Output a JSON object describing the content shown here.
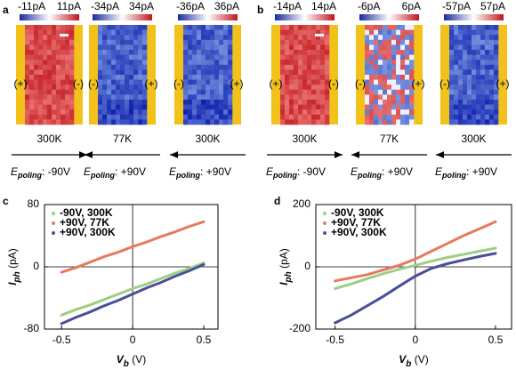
{
  "panels": [
    {
      "label": "a",
      "field_symbol": "E",
      "field_subscript": "poling",
      "images": [
        {
          "cbar_min": "-11pA",
          "cbar_max": "11pA",
          "left_sign": "(+)",
          "right_sign": "(-)",
          "temperature": "300K",
          "arrow": "right",
          "field_value": ": -90V"
        },
        {
          "cbar_min": "-34pA",
          "cbar_max": "34pA",
          "left_sign": "(-)",
          "right_sign": "(+)",
          "temperature": "77K",
          "arrow": "left",
          "field_value": ": +90V"
        },
        {
          "cbar_min": "-36pA",
          "cbar_max": "36pA",
          "left_sign": "(-)",
          "right_sign": "(+)",
          "temperature": "300K",
          "arrow": "left",
          "field_value": ": +90V"
        }
      ]
    },
    {
      "label": "b",
      "field_symbol": "E",
      "field_subscript": "poling",
      "images": [
        {
          "cbar_min": "-14pA",
          "cbar_max": "14pA",
          "left_sign": "(+)",
          "right_sign": "(-)",
          "temperature": "300K",
          "arrow": "right",
          "field_value": ": -90V"
        },
        {
          "cbar_min": "-6pA",
          "cbar_max": "6pA",
          "left_sign": "(-)",
          "right_sign": "(+)",
          "temperature": "77K",
          "arrow": "left",
          "field_value": ": +90V"
        },
        {
          "cbar_min": "-57pA",
          "cbar_max": "57pA",
          "left_sign": "(-)",
          "right_sign": "(+)",
          "temperature": "300K",
          "arrow": "left",
          "field_value": ": +90V"
        }
      ]
    }
  ],
  "chart_data": [
    {
      "type": "line",
      "label": "c",
      "ylabel": "I",
      "ylabel_sub": "ph",
      "ylabel_unit": " (pA)",
      "xlabel": "V",
      "xlabel_sub": "b",
      "xlabel_unit": " (V)",
      "x": [
        -0.5,
        -0.4,
        -0.3,
        -0.2,
        -0.1,
        0,
        0.1,
        0.2,
        0.3,
        0.4,
        0.5
      ],
      "series": [
        {
          "name": "-90V, 300K",
          "color": "#9ccf85",
          "values": [
            -62,
            -55,
            -49,
            -42,
            -35,
            -28,
            -22,
            -15,
            -8,
            -2,
            5
          ]
        },
        {
          "name": "+90V, 77K",
          "color": "#e57a60",
          "values": [
            -7,
            -1,
            6,
            13,
            19,
            26,
            32,
            39,
            45,
            52,
            58
          ]
        },
        {
          "name": "+90V, 300K",
          "color": "#4b4f98",
          "values": [
            -73,
            -65,
            -58,
            -50,
            -43,
            -35,
            -27,
            -20,
            -12,
            -5,
            3
          ]
        }
      ],
      "xlim": [
        -0.62,
        0.6
      ],
      "xticks": [
        -0.5,
        0.0,
        0.5
      ],
      "ylim": [
        -80,
        80
      ],
      "yticks": [
        -80,
        0,
        80
      ],
      "legend": "upper left"
    },
    {
      "type": "line",
      "label": "d",
      "ylabel": "I",
      "ylabel_sub": "ph",
      "ylabel_unit": " (pA)",
      "xlabel": "V",
      "xlabel_sub": "b",
      "xlabel_unit": " (V)",
      "x": [
        -0.5,
        -0.4,
        -0.3,
        -0.2,
        -0.1,
        0,
        0.1,
        0.2,
        0.3,
        0.4,
        0.5
      ],
      "series": [
        {
          "name": "-90V, 300K",
          "color": "#9ccf85",
          "values": [
            -70,
            -55,
            -38,
            -22,
            -8,
            5,
            18,
            30,
            40,
            50,
            60
          ]
        },
        {
          "name": "+90V, 77K",
          "color": "#e57a60",
          "values": [
            -45,
            -35,
            -25,
            -10,
            5,
            25,
            50,
            75,
            100,
            122,
            145
          ]
        },
        {
          "name": "+90V, 300K",
          "color": "#4b4f98",
          "values": [
            -180,
            -155,
            -125,
            -95,
            -62,
            -30,
            -5,
            10,
            22,
            33,
            43
          ]
        }
      ],
      "xlim": [
        -0.62,
        0.6
      ],
      "xticks": [
        -0.5,
        0.0,
        0.5
      ],
      "ylim": [
        -200,
        200
      ],
      "yticks": [
        -200,
        0,
        200
      ],
      "legend": "upper left"
    }
  ]
}
